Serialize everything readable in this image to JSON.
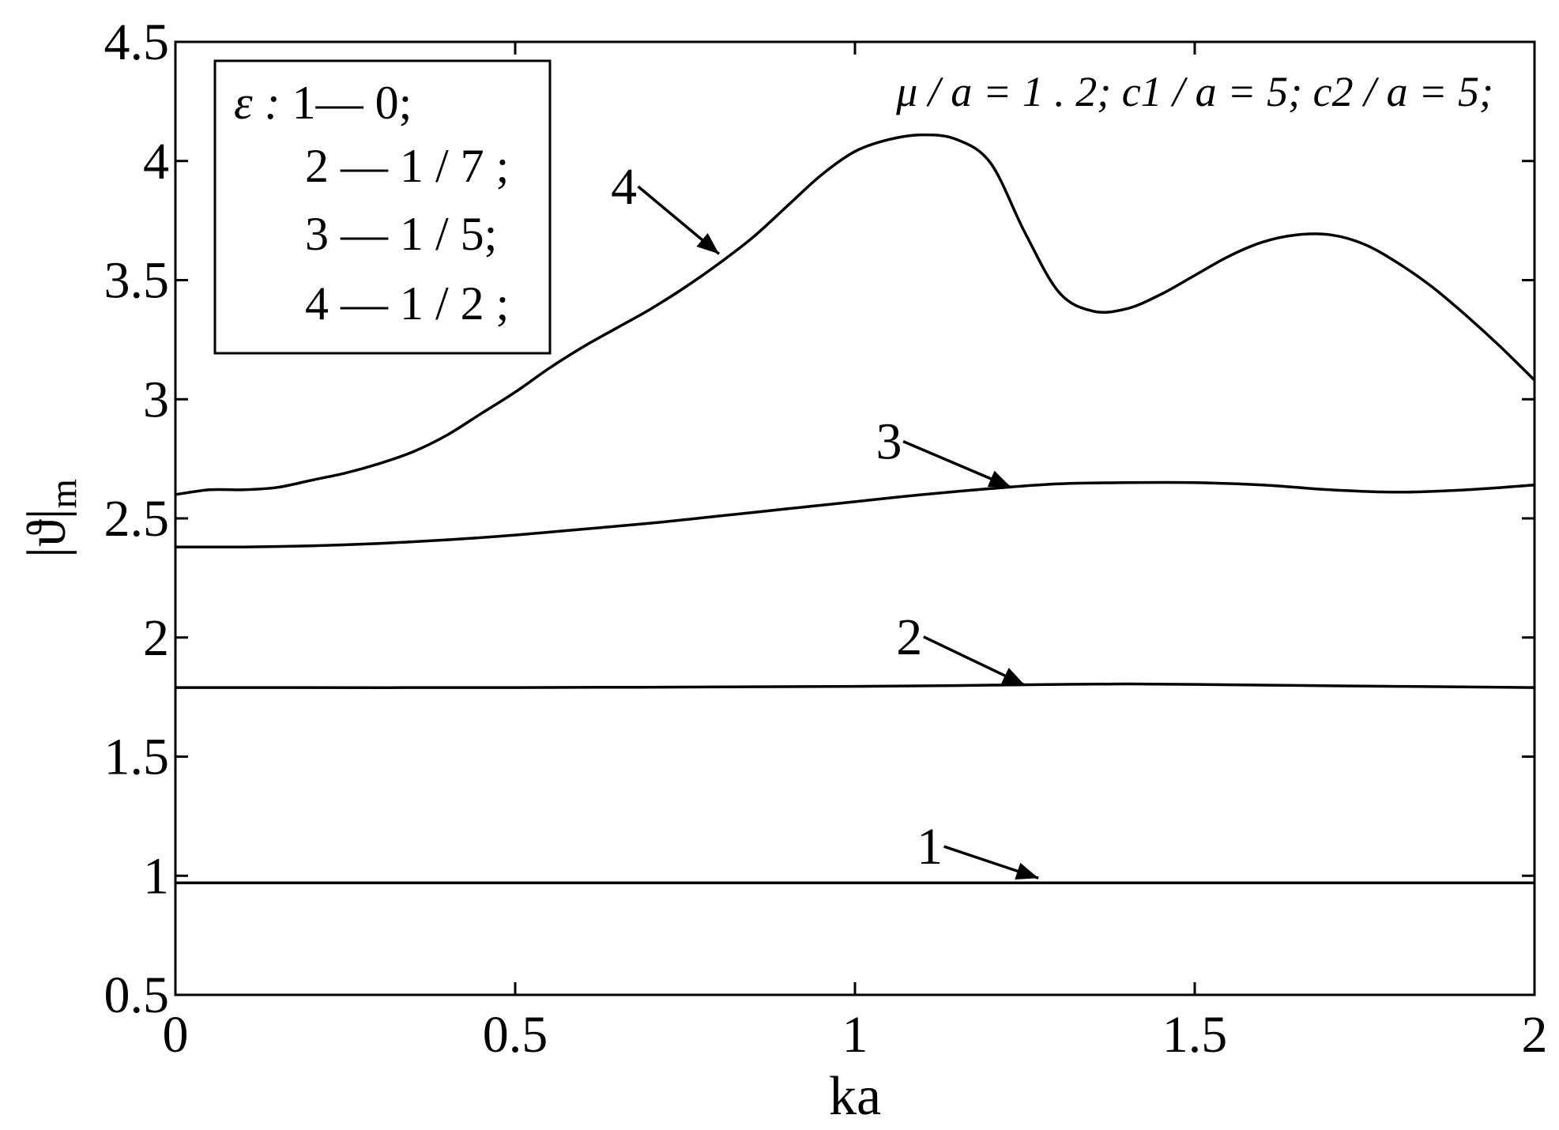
{
  "chart_data": {
    "type": "line",
    "xlabel": "ka",
    "ylabel": "|ϑ|",
    "ylabel_sub": "m",
    "xlim": [
      0,
      2
    ],
    "ylim": [
      0.5,
      4.5
    ],
    "xticks": [
      0,
      0.5,
      1,
      1.5,
      2
    ],
    "xtick_labels": [
      "0",
      "0.5",
      "1",
      "1.5",
      "2"
    ],
    "yticks": [
      0.5,
      1,
      1.5,
      2,
      2.5,
      3,
      3.5,
      4,
      4.5
    ],
    "ytick_labels": [
      "0.5",
      "1",
      "1.5",
      "2",
      "2.5",
      "3",
      "3.5",
      "4",
      "4.5"
    ],
    "grid": false,
    "legend": {
      "position": "top-left",
      "symbol": "ε",
      "entries": [
        {
          "prefix": "ε : ",
          "text": "1— 0;"
        },
        {
          "prefix": "",
          "text": "2 — 1 / 7 ;"
        },
        {
          "prefix": "",
          "text": "3 — 1 / 5;"
        },
        {
          "prefix": "",
          "text": "4 — 1 / 2 ;"
        }
      ]
    },
    "annotation": "μ / a = 1 . 2; c1 / a = 5; c2 / a = 5;",
    "series": [
      {
        "name": "1",
        "x": [
          0,
          0.5,
          1,
          1.5,
          2
        ],
        "y": [
          0.97,
          0.97,
          0.97,
          0.97,
          0.97
        ],
        "label": "1",
        "label_at": [
          1.11,
          1.05
        ],
        "arrow_to": [
          1.27,
          0.99
        ]
      },
      {
        "name": "2",
        "x": [
          0,
          0.5,
          1,
          1.2,
          1.4,
          1.6,
          1.8,
          2
        ],
        "y": [
          1.79,
          1.79,
          1.795,
          1.8,
          1.805,
          1.8,
          1.795,
          1.79
        ],
        "label": "2",
        "label_at": [
          1.08,
          1.93
        ],
        "arrow_to": [
          1.25,
          1.8
        ]
      },
      {
        "name": "3",
        "x": [
          0,
          0.1,
          0.2,
          0.3,
          0.4,
          0.5,
          0.6,
          0.7,
          0.8,
          0.9,
          1.0,
          1.1,
          1.2,
          1.3,
          1.4,
          1.5,
          1.6,
          1.7,
          1.8,
          1.9,
          2.0
        ],
        "y": [
          2.38,
          2.38,
          2.385,
          2.395,
          2.41,
          2.43,
          2.455,
          2.48,
          2.51,
          2.54,
          2.57,
          2.6,
          2.625,
          2.645,
          2.65,
          2.65,
          2.64,
          2.62,
          2.61,
          2.62,
          2.64
        ],
        "label": "3",
        "label_at": [
          1.05,
          2.75
        ],
        "arrow_to": [
          1.23,
          2.63
        ]
      },
      {
        "name": "4",
        "x": [
          0,
          0.05,
          0.1,
          0.15,
          0.2,
          0.25,
          0.3,
          0.35,
          0.4,
          0.45,
          0.5,
          0.55,
          0.6,
          0.65,
          0.7,
          0.75,
          0.8,
          0.85,
          0.9,
          0.95,
          1.0,
          1.05,
          1.1,
          1.15,
          1.2,
          1.25,
          1.3,
          1.35,
          1.4,
          1.45,
          1.5,
          1.55,
          1.6,
          1.65,
          1.7,
          1.75,
          1.8,
          1.85,
          1.9,
          1.95,
          2.0
        ],
        "y": [
          2.6,
          2.62,
          2.62,
          2.63,
          2.66,
          2.69,
          2.73,
          2.78,
          2.85,
          2.94,
          3.03,
          3.13,
          3.22,
          3.3,
          3.38,
          3.47,
          3.57,
          3.68,
          3.81,
          3.94,
          4.04,
          4.09,
          4.11,
          4.09,
          3.99,
          3.7,
          3.45,
          3.37,
          3.38,
          3.44,
          3.52,
          3.6,
          3.66,
          3.69,
          3.69,
          3.65,
          3.57,
          3.47,
          3.35,
          3.22,
          3.08
        ],
        "label": "4",
        "label_at": [
          0.66,
          3.82
        ],
        "arrow_to": [
          0.8,
          3.61
        ]
      }
    ]
  }
}
